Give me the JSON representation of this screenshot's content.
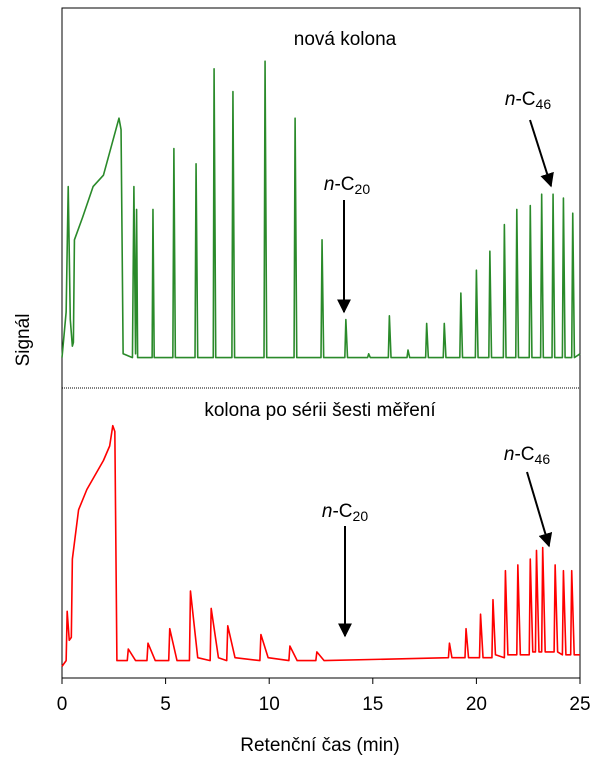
{
  "chart_data": [
    {
      "type": "line",
      "title": "nová kolona",
      "ylabel": "Signál",
      "color": "#2a8a2a",
      "xlim": [
        0,
        25
      ],
      "ylim": [
        0,
        100
      ],
      "x": [
        0,
        0.2,
        0.3,
        0.4,
        0.5,
        0.55,
        0.6,
        1.0,
        1.5,
        2.0,
        2.4,
        2.75,
        2.85,
        2.95,
        3.4,
        3.47,
        3.55,
        3.6,
        3.65,
        4.35,
        4.39,
        4.45,
        5.35,
        5.4,
        5.47,
        6.42,
        6.47,
        6.55,
        7.3,
        7.34,
        7.42,
        8.2,
        8.25,
        8.33,
        9.75,
        9.8,
        9.88,
        11.2,
        11.25,
        11.33,
        12.5,
        12.55,
        12.63,
        13.65,
        13.7,
        13.78,
        14.75,
        14.8,
        14.88,
        15.75,
        15.8,
        15.88,
        16.65,
        16.7,
        16.78,
        17.55,
        17.6,
        17.68,
        18.4,
        18.45,
        18.53,
        19.2,
        19.25,
        19.33,
        19.95,
        20.0,
        20.08,
        20.6,
        20.65,
        20.73,
        21.3,
        21.35,
        21.43,
        21.9,
        21.95,
        22.03,
        22.55,
        22.6,
        22.68,
        23.1,
        23.15,
        23.23,
        23.65,
        23.7,
        23.78,
        24.15,
        24.2,
        24.28,
        24.6,
        24.65,
        24.73,
        25
      ],
      "values": [
        8,
        20,
        53,
        18,
        11,
        12,
        39,
        45,
        53,
        56,
        64,
        71,
        68,
        9,
        8,
        53,
        9,
        47,
        8,
        8,
        47,
        8,
        8,
        63,
        8,
        8,
        59,
        8,
        8,
        84,
        8,
        8,
        78,
        8,
        8,
        86,
        8,
        8,
        71,
        8,
        8,
        39,
        8,
        8,
        18,
        8,
        8,
        9,
        8,
        8,
        19,
        8,
        8,
        10,
        8,
        8,
        17,
        8,
        8,
        17,
        8,
        8,
        25,
        8,
        8,
        31,
        8,
        8,
        36,
        8,
        8,
        43,
        8,
        8,
        47,
        8,
        8,
        48,
        8,
        8,
        51,
        8,
        8,
        51,
        8,
        8,
        50,
        8,
        8,
        46,
        8,
        9
      ],
      "annotations": [
        "n-C20",
        "n-C46"
      ]
    },
    {
      "type": "line",
      "title": "kolona po sérii šesti měření",
      "xlabel": "Retenční čas (min)",
      "color": "#ff0000",
      "xlim": [
        0,
        25
      ],
      "xticks": [
        0,
        5,
        10,
        15,
        20,
        25
      ],
      "ylim": [
        0,
        100
      ],
      "x": [
        0,
        0.2,
        0.25,
        0.35,
        0.45,
        0.5,
        0.8,
        1.2,
        1.6,
        2.0,
        2.3,
        2.45,
        2.55,
        2.65,
        3.15,
        3.2,
        3.55,
        4.1,
        4.15,
        4.5,
        5.15,
        5.2,
        5.55,
        6.15,
        6.2,
        6.55,
        7.15,
        7.2,
        7.55,
        7.95,
        8.0,
        8.35,
        9.55,
        9.6,
        9.95,
        10.95,
        11.0,
        11.35,
        12.25,
        12.3,
        12.65,
        18.65,
        18.7,
        18.82,
        19.45,
        19.5,
        19.62,
        20.15,
        20.2,
        20.32,
        20.75,
        20.8,
        20.92,
        21.35,
        21.4,
        21.52,
        21.95,
        22.0,
        22.12,
        22.55,
        22.6,
        22.72,
        22.85,
        22.9,
        23.02,
        23.15,
        23.2,
        23.32,
        23.75,
        23.8,
        23.92,
        24.15,
        24.2,
        24.32,
        24.55,
        24.6,
        24.72,
        25
      ],
      "values": [
        4,
        6,
        23,
        13,
        14,
        41,
        58,
        65,
        70,
        75,
        80,
        87,
        85,
        6,
        6,
        10,
        6,
        6,
        12,
        6,
        6,
        17,
        6,
        6,
        30,
        7,
        6,
        24,
        7,
        6,
        18,
        7,
        6,
        15,
        7,
        6,
        11,
        6,
        6,
        9,
        6,
        7,
        12,
        7,
        7,
        17,
        7,
        7,
        22,
        7,
        7,
        27,
        8,
        7,
        37,
        8,
        8,
        39,
        8,
        8,
        41,
        9,
        9,
        44,
        9,
        9,
        45,
        9,
        9,
        39,
        9,
        8,
        37,
        8,
        8,
        37,
        8,
        8
      ],
      "annotations": [
        "n-C20",
        "n-C46"
      ]
    }
  ]
}
